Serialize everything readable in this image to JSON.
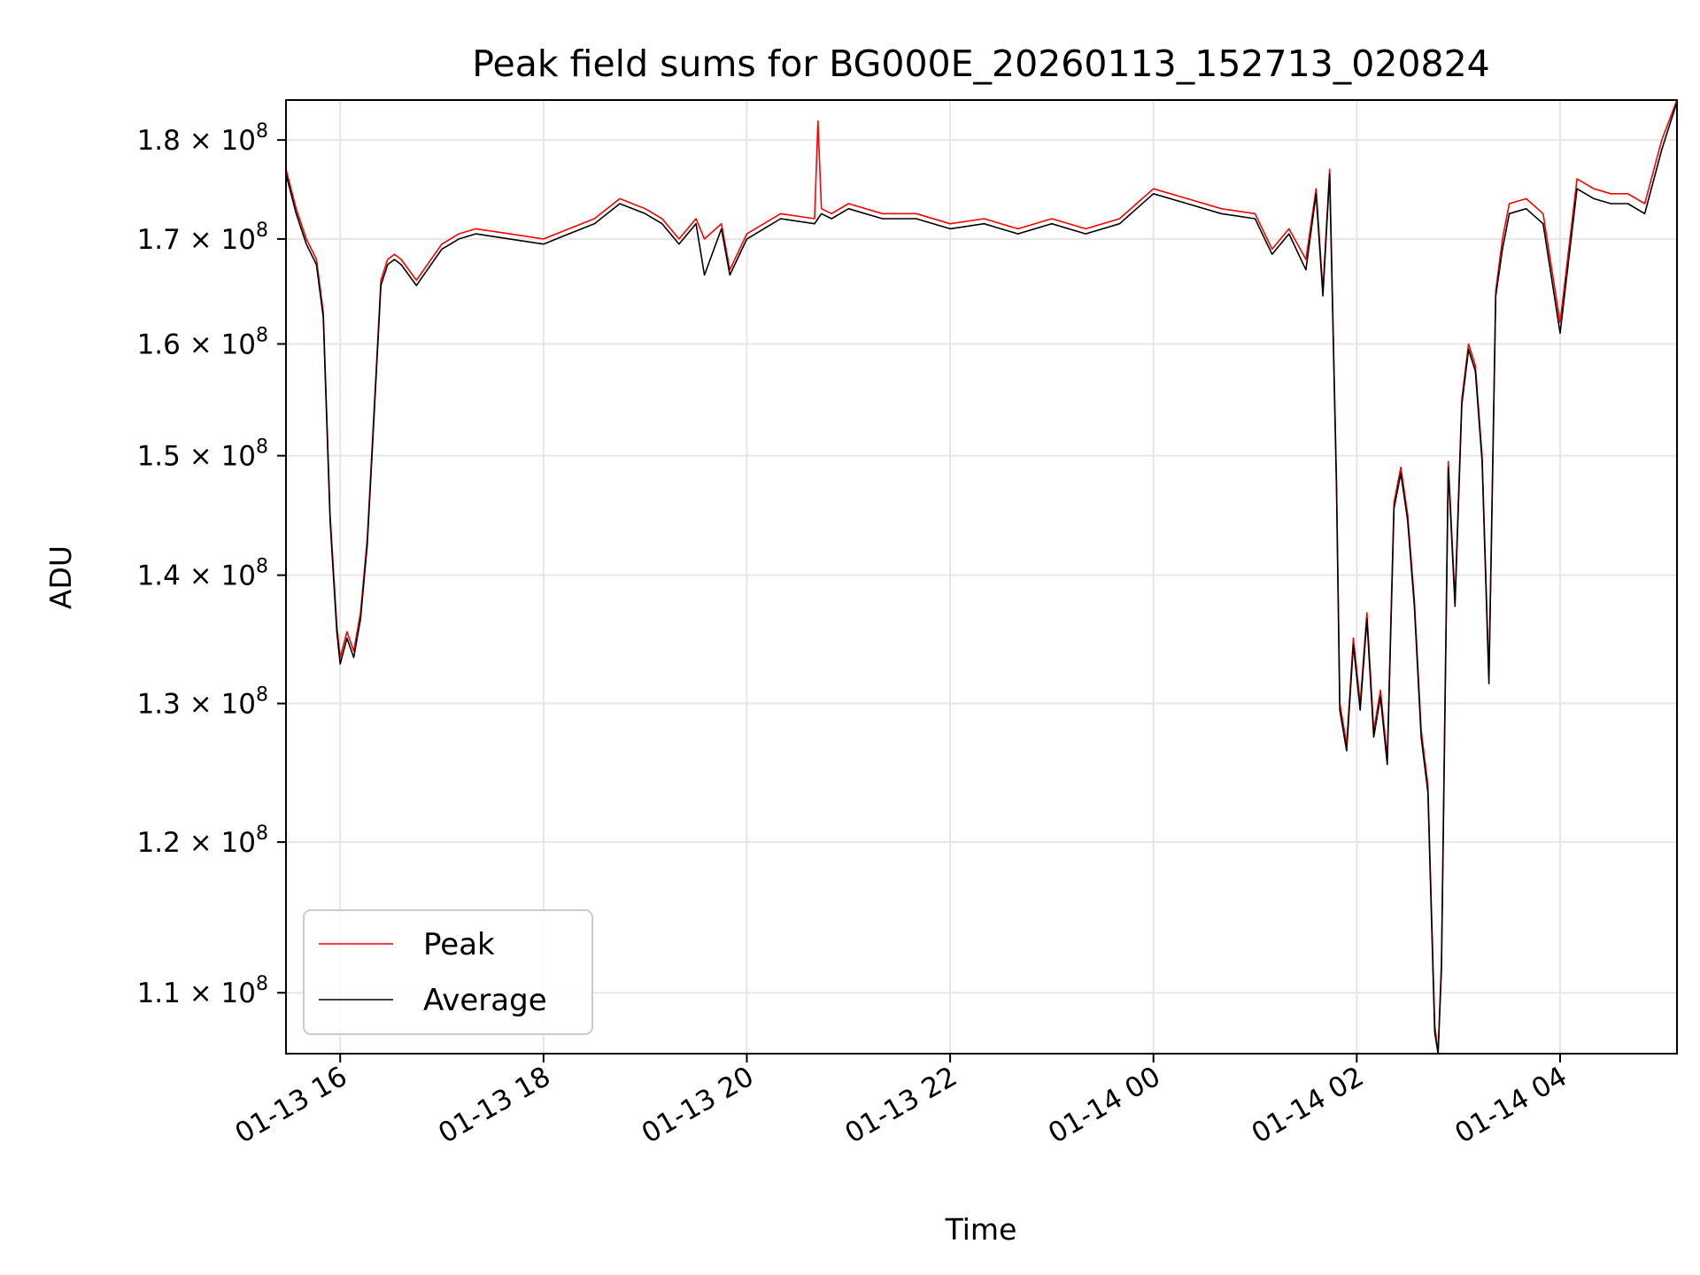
{
  "chart_data": {
    "type": "line",
    "title": "Peak field sums for BG000E_20260113_152713_020824",
    "xlabel": "Time",
    "ylabel": "ADU",
    "yscale": "log",
    "ylim": [
      106200000,
      184200000
    ],
    "xlim": [
      "01-13 15:28",
      "01-14 05:09"
    ],
    "grid": true,
    "legend_position": "lower-left",
    "x_ticks": [
      {
        "label": "01-13 16",
        "t": "01-13 16:00"
      },
      {
        "label": "01-13 18",
        "t": "01-13 18:00"
      },
      {
        "label": "01-13 20",
        "t": "01-13 20:00"
      },
      {
        "label": "01-13 22",
        "t": "01-13 22:00"
      },
      {
        "label": "01-14 00",
        "t": "01-14 00:00"
      },
      {
        "label": "01-14 02",
        "t": "01-14 02:00"
      },
      {
        "label": "01-14 04",
        "t": "01-14 04:00"
      }
    ],
    "y_ticks": [
      {
        "mant": "1.1",
        "value": 110000000
      },
      {
        "mant": "1.2",
        "value": 120000000
      },
      {
        "mant": "1.3",
        "value": 130000000
      },
      {
        "mant": "1.4",
        "value": 140000000
      },
      {
        "mant": "1.5",
        "value": 150000000
      },
      {
        "mant": "1.6",
        "value": 160000000
      },
      {
        "mant": "1.7",
        "value": 170000000
      },
      {
        "mant": "1.8",
        "value": 180000000
      }
    ],
    "y_tick_suffix": "× 10",
    "y_tick_exponent": "8",
    "x": [
      "01-13 15:28",
      "01-13 15:34",
      "01-13 15:40",
      "01-13 15:46",
      "01-13 15:50",
      "01-13 15:54",
      "01-13 15:58",
      "01-13 16:00",
      "01-13 16:04",
      "01-13 16:08",
      "01-13 16:12",
      "01-13 16:16",
      "01-13 16:20",
      "01-13 16:24",
      "01-13 16:28",
      "01-13 16:32",
      "01-13 16:36",
      "01-13 16:45",
      "01-13 17:00",
      "01-13 17:10",
      "01-13 17:20",
      "01-13 17:40",
      "01-13 18:00",
      "01-13 18:15",
      "01-13 18:30",
      "01-13 18:45",
      "01-13 19:00",
      "01-13 19:10",
      "01-13 19:20",
      "01-13 19:30",
      "01-13 19:35",
      "01-13 19:45",
      "01-13 19:50",
      "01-13 20:00",
      "01-13 20:20",
      "01-13 20:40",
      "01-13 20:42",
      "01-13 20:44",
      "01-13 20:50",
      "01-13 21:00",
      "01-13 21:20",
      "01-13 21:40",
      "01-13 22:00",
      "01-13 22:20",
      "01-13 22:40",
      "01-13 23:00",
      "01-13 23:20",
      "01-13 23:40",
      "01-13 23:50",
      "01-14 00:00",
      "01-14 00:20",
      "01-14 00:40",
      "01-14 01:00",
      "01-14 01:10",
      "01-14 01:20",
      "01-14 01:30",
      "01-14 01:36",
      "01-14 01:40",
      "01-14 01:44",
      "01-14 01:48",
      "01-14 01:50",
      "01-14 01:54",
      "01-14 01:58",
      "01-14 02:02",
      "01-14 02:06",
      "01-14 02:10",
      "01-14 02:14",
      "01-14 02:18",
      "01-14 02:22",
      "01-14 02:26",
      "01-14 02:30",
      "01-14 02:34",
      "01-14 02:38",
      "01-14 02:42",
      "01-14 02:46",
      "01-14 02:48",
      "01-14 02:50",
      "01-14 02:54",
      "01-14 02:58",
      "01-14 03:02",
      "01-14 03:06",
      "01-14 03:10",
      "01-14 03:14",
      "01-14 03:18",
      "01-14 03:22",
      "01-14 03:26",
      "01-14 03:30",
      "01-14 03:40",
      "01-14 03:50",
      "01-14 04:00",
      "01-14 04:10",
      "01-14 04:20",
      "01-14 04:30",
      "01-14 04:40",
      "01-14 04:50",
      "01-14 05:00",
      "01-14 05:09"
    ],
    "series": [
      {
        "name": "Peak",
        "color": "#ff0000",
        "values": [
          177000000,
          173000000,
          170000000,
          168000000,
          163000000,
          145000000,
          136000000,
          133500000,
          135500000,
          134000000,
          137000000,
          143000000,
          154000000,
          166000000,
          168000000,
          168500000,
          168000000,
          166000000,
          169500000,
          170500000,
          171000000,
          170500000,
          170000000,
          171000000,
          172000000,
          174000000,
          173000000,
          172000000,
          170000000,
          172000000,
          170000000,
          171500000,
          167000000,
          170500000,
          172500000,
          172000000,
          182000000,
          173000000,
          172500000,
          173500000,
          172500000,
          172500000,
          171500000,
          172000000,
          171000000,
          172000000,
          171000000,
          172000000,
          173500000,
          175000000,
          174000000,
          173000000,
          172500000,
          169000000,
          171000000,
          168000000,
          175000000,
          165000000,
          177000000,
          148000000,
          130000000,
          127000000,
          135000000,
          130000000,
          137000000,
          128000000,
          131000000,
          126000000,
          146000000,
          149000000,
          145000000,
          138000000,
          128000000,
          124000000,
          108000000,
          106200000,
          112000000,
          149500000,
          138000000,
          155000000,
          160000000,
          158000000,
          150000000,
          132000000,
          165000000,
          170000000,
          173500000,
          174000000,
          172500000,
          162000000,
          176000000,
          175000000,
          174500000,
          174500000,
          173500000,
          180000000,
          184200000
        ]
      },
      {
        "name": "Average",
        "color": "#000000",
        "values": [
          176500000,
          172500000,
          169500000,
          167500000,
          162500000,
          144500000,
          135500000,
          133000000,
          135000000,
          133500000,
          136500000,
          142500000,
          153500000,
          165500000,
          167500000,
          168000000,
          167500000,
          165500000,
          169000000,
          170000000,
          170500000,
          170000000,
          169500000,
          170500000,
          171500000,
          173500000,
          172500000,
          171500000,
          169500000,
          171500000,
          166500000,
          171000000,
          166500000,
          170000000,
          172000000,
          171500000,
          172000000,
          172500000,
          172000000,
          173000000,
          172000000,
          172000000,
          171000000,
          171500000,
          170500000,
          171500000,
          170500000,
          171500000,
          173000000,
          174500000,
          173500000,
          172500000,
          172000000,
          168500000,
          170500000,
          167000000,
          174500000,
          164500000,
          176500000,
          147500000,
          129500000,
          126500000,
          134500000,
          129500000,
          136500000,
          127500000,
          130500000,
          125500000,
          145500000,
          148500000,
          144500000,
          137500000,
          127500000,
          123500000,
          107500000,
          106200000,
          111500000,
          149000000,
          137500000,
          154500000,
          159500000,
          157500000,
          149500000,
          131500000,
          164500000,
          169000000,
          172500000,
          173000000,
          171500000,
          161000000,
          175000000,
          174000000,
          173500000,
          173500000,
          172500000,
          179000000,
          184000000
        ]
      }
    ]
  }
}
